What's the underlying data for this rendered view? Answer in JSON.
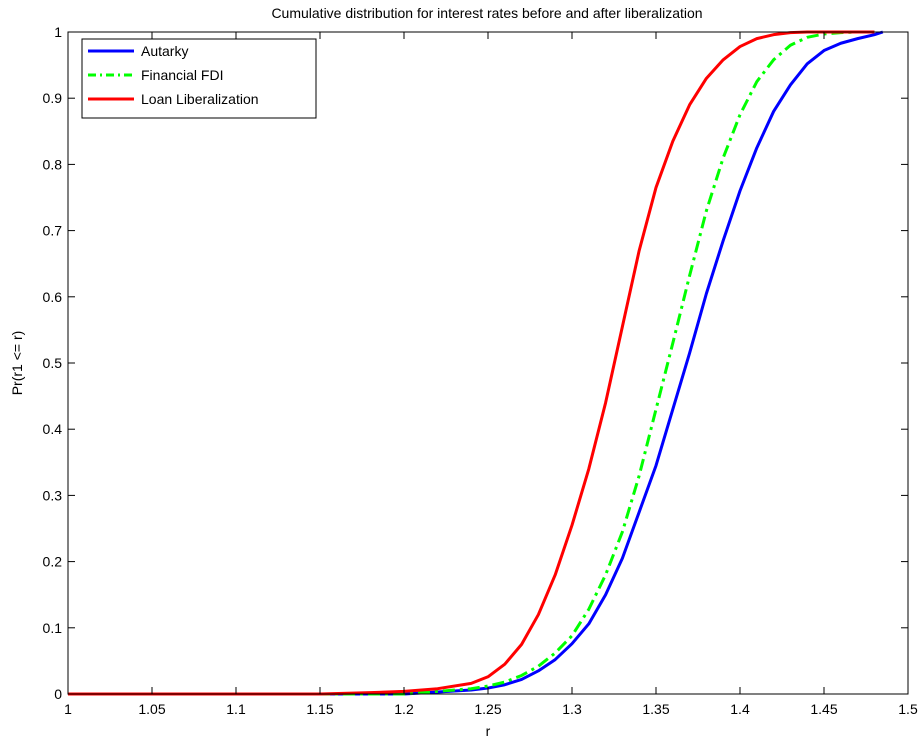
{
  "chart_data": {
    "type": "line",
    "title": "Cumulative distribution for interest rates before and after liberalization",
    "xlabel": "r",
    "ylabel": "Pr(r1 <= r)",
    "xlim": [
      1,
      1.5
    ],
    "ylim": [
      0,
      1
    ],
    "xticks": [
      "1",
      "1.05",
      "1.1",
      "1.15",
      "1.2",
      "1.25",
      "1.3",
      "1.35",
      "1.4",
      "1.45",
      "1.5"
    ],
    "yticks": [
      "0",
      "0.1",
      "0.2",
      "0.3",
      "0.4",
      "0.5",
      "0.6",
      "0.7",
      "0.8",
      "0.9",
      "1"
    ],
    "grid": false,
    "legend_position": "top-left",
    "series": [
      {
        "name": "Autarky",
        "color": "#0000ff",
        "style": "solid",
        "x": [
          1.0,
          1.15,
          1.2,
          1.22,
          1.24,
          1.25,
          1.26,
          1.27,
          1.28,
          1.29,
          1.3,
          1.31,
          1.32,
          1.33,
          1.34,
          1.35,
          1.36,
          1.37,
          1.38,
          1.39,
          1.4,
          1.41,
          1.42,
          1.43,
          1.44,
          1.45,
          1.46,
          1.47,
          1.48,
          1.485
        ],
        "y": [
          0.0,
          0.0,
          0.0,
          0.003,
          0.006,
          0.009,
          0.014,
          0.022,
          0.035,
          0.052,
          0.076,
          0.106,
          0.15,
          0.205,
          0.275,
          0.345,
          0.43,
          0.515,
          0.605,
          0.685,
          0.76,
          0.825,
          0.88,
          0.92,
          0.952,
          0.972,
          0.983,
          0.99,
          0.996,
          1.0
        ]
      },
      {
        "name": "Financial FDI",
        "color": "#00ff00",
        "style": "dashdot",
        "x": [
          1.0,
          1.15,
          1.2,
          1.22,
          1.24,
          1.25,
          1.26,
          1.27,
          1.28,
          1.29,
          1.3,
          1.31,
          1.32,
          1.33,
          1.34,
          1.35,
          1.36,
          1.37,
          1.38,
          1.39,
          1.4,
          1.41,
          1.42,
          1.43,
          1.44,
          1.45,
          1.46,
          1.47,
          1.48
        ],
        "y": [
          0.0,
          0.0,
          0.0,
          0.004,
          0.008,
          0.012,
          0.018,
          0.028,
          0.042,
          0.062,
          0.088,
          0.128,
          0.18,
          0.245,
          0.33,
          0.43,
          0.53,
          0.632,
          0.73,
          0.81,
          0.875,
          0.925,
          0.958,
          0.98,
          0.992,
          0.997,
          0.999,
          1.0,
          1.0
        ]
      },
      {
        "name": "Loan Liberalization",
        "color": "#ff0000",
        "style": "solid",
        "x": [
          1.0,
          1.15,
          1.18,
          1.2,
          1.22,
          1.24,
          1.25,
          1.26,
          1.27,
          1.28,
          1.29,
          1.3,
          1.31,
          1.32,
          1.33,
          1.34,
          1.35,
          1.36,
          1.37,
          1.38,
          1.39,
          1.4,
          1.41,
          1.42,
          1.43,
          1.44,
          1.45,
          1.46,
          1.47,
          1.48
        ],
        "y": [
          0.0,
          0.0,
          0.002,
          0.004,
          0.008,
          0.016,
          0.026,
          0.045,
          0.075,
          0.12,
          0.18,
          0.255,
          0.34,
          0.44,
          0.555,
          0.67,
          0.765,
          0.835,
          0.89,
          0.93,
          0.958,
          0.978,
          0.99,
          0.996,
          0.999,
          1.0,
          1.0,
          1.0,
          1.0,
          1.0
        ]
      }
    ]
  }
}
